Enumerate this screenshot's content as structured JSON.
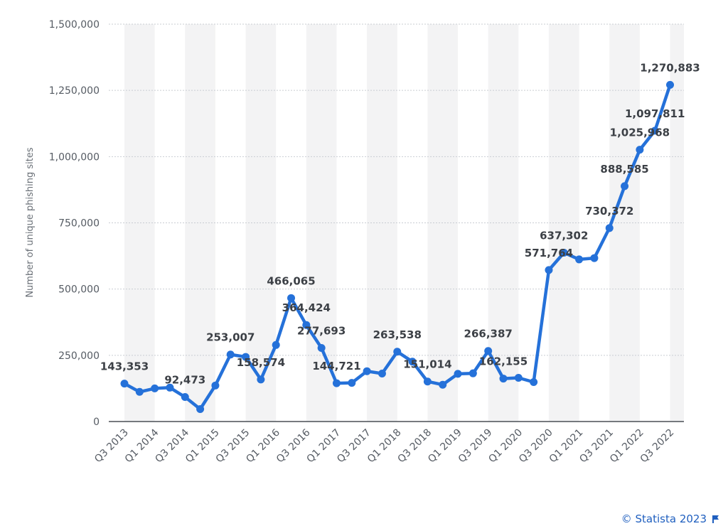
{
  "chart_data": {
    "type": "line",
    "ylabel": "Number of unique phishing sites",
    "ylim": [
      0,
      1500000
    ],
    "yticks": [
      "0",
      "250,000",
      "500,000",
      "750,000",
      "1,000,000",
      "1,250,000",
      "1,500,000"
    ],
    "ytick_values": [
      0,
      250000,
      500000,
      750000,
      1000000,
      1250000,
      1500000
    ],
    "categories": [
      "Q3 2013",
      "Q4 2013",
      "Q1 2014",
      "Q2 2014",
      "Q3 2014",
      "Q4 2014",
      "Q1 2015",
      "Q2 2015",
      "Q3 2015",
      "Q4 2015",
      "Q1 2016",
      "Q2 2016",
      "Q3 2016",
      "Q4 2016",
      "Q1 2017",
      "Q2 2017",
      "Q3 2017",
      "Q4 2017",
      "Q1 2018",
      "Q2 2018",
      "Q3 2018",
      "Q4 2018",
      "Q1 2019",
      "Q2 2019",
      "Q3 2019",
      "Q4 2019",
      "Q1 2020",
      "Q2 2020",
      "Q3 2020",
      "Q4 2020",
      "Q1 2021",
      "Q2 2021",
      "Q3 2021",
      "Q4 2021",
      "Q1 2022",
      "Q2 2022",
      "Q3 2022"
    ],
    "tick_labels": [
      "Q3 2013",
      "Q1 2014",
      "Q3 2014",
      "Q1 2015",
      "Q3 2015",
      "Q1 2016",
      "Q3 2016",
      "Q1 2017",
      "Q3 2017",
      "Q1 2018",
      "Q3 2018",
      "Q1 2019",
      "Q3 2019",
      "Q1 2020",
      "Q3 2020",
      "Q1 2021",
      "Q3 2021",
      "Q1 2022",
      "Q3 2022"
    ],
    "series": [
      {
        "values": [
          143353,
          112000,
          125000,
          128000,
          92473,
          47000,
          136000,
          253007,
          244000,
          158574,
          289000,
          466065,
          364424,
          277693,
          144721,
          146000,
          190000,
          181000,
          263538,
          226000,
          151014,
          139000,
          180000,
          182000,
          266387,
          162155,
          165000,
          149000,
          571764,
          637302,
          612000,
          617000,
          730372,
          888585,
          1025968,
          1097811,
          1270883
        ],
        "labels": [
          "143,353",
          "",
          "",
          "",
          "92,473",
          "",
          "",
          "253,007",
          "",
          "158,574",
          "",
          "466,065",
          "364,424",
          "277,693",
          "144,721",
          "",
          "",
          "",
          "263,538",
          "",
          "151,014",
          "",
          "",
          "",
          "266,387",
          "162,155",
          "",
          "",
          "571,764",
          "637,302",
          "",
          "",
          "730,372",
          "888,585",
          "1,025,968",
          "1,097,811",
          "1,270,883"
        ]
      }
    ],
    "grid": true,
    "color": "#2571d9"
  },
  "credit": "© Statista 2023"
}
